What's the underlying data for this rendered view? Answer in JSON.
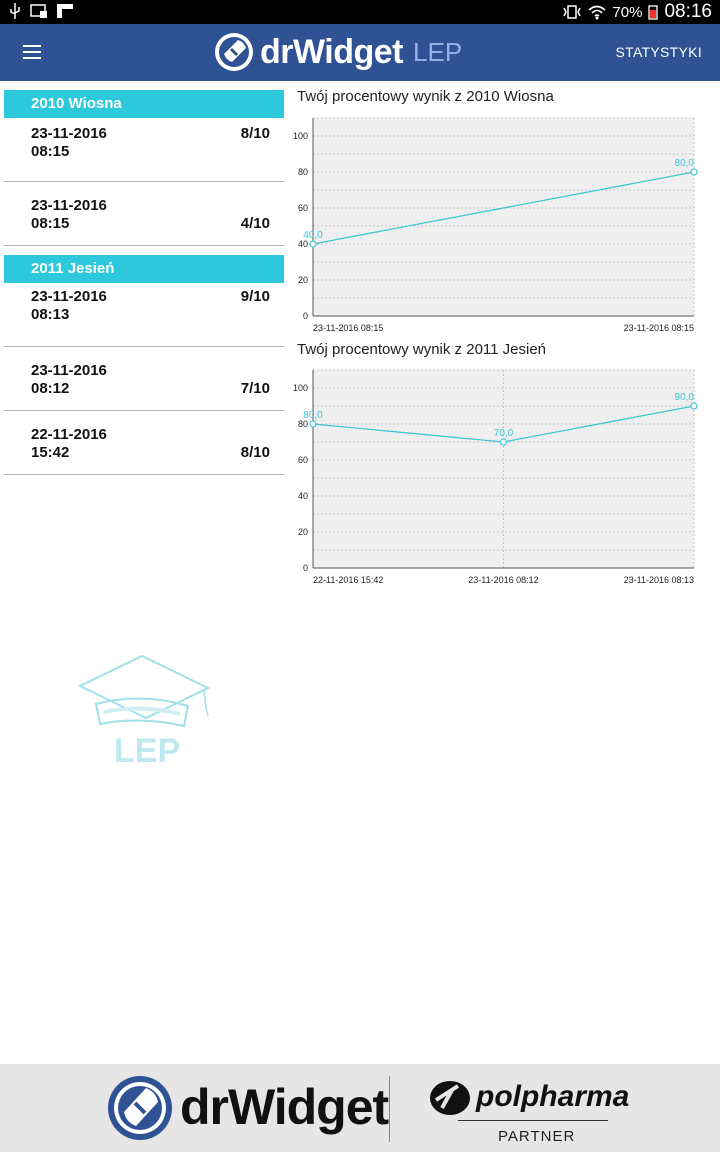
{
  "status_bar": {
    "battery": "70%",
    "time": "08:16"
  },
  "app_bar": {
    "logo": "drWidget",
    "logo_sub": "LEP",
    "action": "STATYSTYKI"
  },
  "groups": [
    {
      "title": "2010 Wiosna",
      "entries": [
        {
          "date": "23-11-2016",
          "time": "08:15",
          "score": "8/10"
        },
        {
          "date": "23-11-2016",
          "time": "08:15",
          "score": "4/10"
        }
      ]
    },
    {
      "title": "2011 Jesień",
      "entries": [
        {
          "date": "23-11-2016",
          "time": "08:13",
          "score": "9/10"
        },
        {
          "date": "23-11-2016",
          "time": "08:12",
          "score": "7/10"
        },
        {
          "date": "22-11-2016",
          "time": "15:42",
          "score": "8/10"
        }
      ]
    }
  ],
  "chart_data": [
    {
      "type": "line",
      "title": "Twój procentowy wynik z 2010 Wiosna",
      "x": [
        "23-11-2016 08:15",
        "23-11-2016 08:15"
      ],
      "values": [
        40.0,
        80.0
      ],
      "value_labels": [
        "40,0",
        "80,0"
      ],
      "yticks": [
        "0",
        "20",
        "40",
        "60",
        "80",
        "100"
      ],
      "ylim": [
        0,
        110
      ],
      "grid": true,
      "color": "#3fc6d6"
    },
    {
      "type": "line",
      "title": "Twój procentowy wynik z 2011 Jesień",
      "x": [
        "22-11-2016 15:42",
        "23-11-2016 08:12",
        "23-11-2016 08:13"
      ],
      "values": [
        80.0,
        70.0,
        90.0
      ],
      "value_labels": [
        "80,0",
        "70,0",
        "90,0"
      ],
      "yticks": [
        "0",
        "20",
        "40",
        "60",
        "80",
        "100"
      ],
      "ylim": [
        0,
        110
      ],
      "grid": true,
      "color": "#3fc6d6"
    }
  ],
  "watermark": {
    "text": "LEP"
  },
  "footer": {
    "brand_left": "drWidget",
    "brand_right": "polpharma",
    "partner": "PARTNER"
  }
}
